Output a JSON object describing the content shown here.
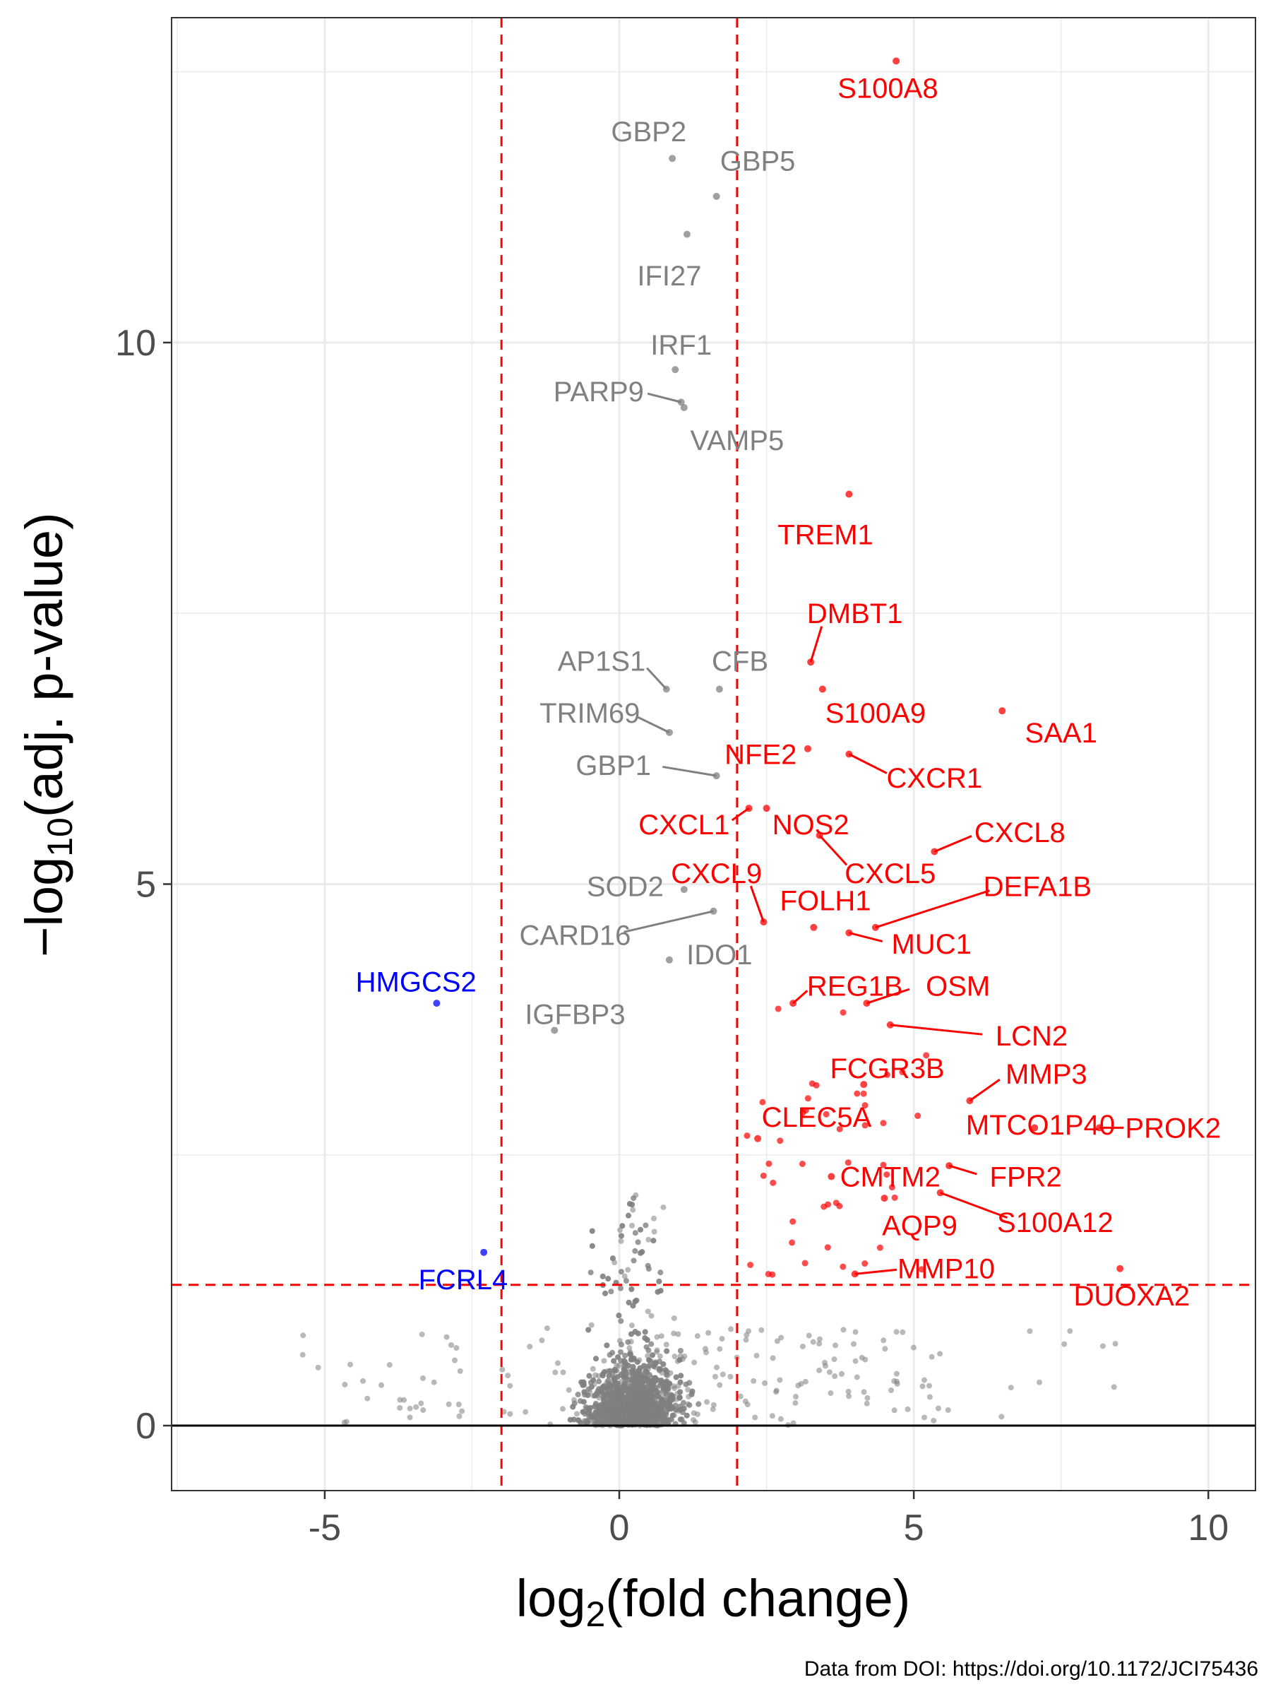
{
  "caption": "Data from DOI: https://doi.org/10.1172/JCI75436",
  "colors": {
    "up": "#ff0000",
    "down": "#0000ff",
    "ns": "#808080",
    "threshold": "#ff0000",
    "grid": "#ebebeb"
  },
  "chart_data": {
    "type": "scatter",
    "subtype": "volcano",
    "title": "",
    "xlabel": "log",
    "xlabel_sub": "2",
    "xlabel_rest": "(fold change)",
    "ylabel": "−log",
    "ylabel_sub": "10",
    "ylabel_rest": "(adj. p-value)",
    "xlim": [
      -7.6,
      10.8
    ],
    "ylim": [
      -0.6,
      13.0
    ],
    "xticks": [
      -5,
      0,
      5,
      10
    ],
    "xtick_labels": [
      "-5",
      "0",
      "5",
      "10"
    ],
    "yticks": [
      0,
      5,
      10
    ],
    "ytick_labels": [
      "0",
      "5",
      "10"
    ],
    "grid": true,
    "legend": "none",
    "thresholds": {
      "log2fc": [
        -2,
        2
      ],
      "neglog10p": 1.3
    },
    "labeled_points": [
      {
        "gene": "S100A8",
        "x": 4.7,
        "y": 12.6,
        "group": "up",
        "lx": 4.56,
        "ly": 12.35
      },
      {
        "gene": "GBP2",
        "x": 0.9,
        "y": 11.7,
        "group": "ns",
        "lx": 0.5,
        "ly": 11.95
      },
      {
        "gene": "GBP5",
        "x": 1.65,
        "y": 11.35,
        "group": "ns",
        "lx": 2.35,
        "ly": 11.68
      },
      {
        "gene": "IFI27",
        "x": 1.15,
        "y": 11.0,
        "group": "ns",
        "lx": 0.85,
        "ly": 10.62
      },
      {
        "gene": "IRF1",
        "x": 0.95,
        "y": 9.75,
        "group": "ns",
        "lx": 1.05,
        "ly": 9.98
      },
      {
        "gene": "PARP9",
        "x": 1.05,
        "y": 9.45,
        "group": "ns",
        "lx": -0.35,
        "ly": 9.55
      },
      {
        "gene": "VAMP5",
        "x": 1.1,
        "y": 9.4,
        "group": "ns",
        "lx": 2.0,
        "ly": 9.1
      },
      {
        "gene": "TREM1",
        "x": 3.9,
        "y": 8.6,
        "group": "up",
        "lx": 3.5,
        "ly": 8.23
      },
      {
        "gene": "DMBT1",
        "x": 3.25,
        "y": 7.05,
        "group": "up",
        "lx": 4.0,
        "ly": 7.5
      },
      {
        "gene": "AP1S1",
        "x": 0.8,
        "y": 6.8,
        "group": "ns",
        "lx": -0.3,
        "ly": 7.06
      },
      {
        "gene": "CFB",
        "x": 1.7,
        "y": 6.8,
        "group": "ns",
        "lx": 2.05,
        "ly": 7.06
      },
      {
        "gene": "S100A9",
        "x": 3.45,
        "y": 6.8,
        "group": "up",
        "lx": 4.35,
        "ly": 6.58
      },
      {
        "gene": "SAA1",
        "x": 6.5,
        "y": 6.6,
        "group": "up",
        "lx": 7.5,
        "ly": 6.4
      },
      {
        "gene": "TRIM69",
        "x": 0.85,
        "y": 6.4,
        "group": "ns",
        "lx": -0.5,
        "ly": 6.58
      },
      {
        "gene": "NFE2",
        "x": 3.2,
        "y": 6.25,
        "group": "up",
        "lx": 2.4,
        "ly": 6.2
      },
      {
        "gene": "CXCR1",
        "x": 3.9,
        "y": 6.2,
        "group": "up",
        "lx": 5.35,
        "ly": 5.98
      },
      {
        "gene": "GBP1",
        "x": 1.65,
        "y": 6.0,
        "group": "ns",
        "lx": -0.1,
        "ly": 6.1
      },
      {
        "gene": "CXCL1",
        "x": 2.2,
        "y": 5.7,
        "group": "up",
        "lx": 1.1,
        "ly": 5.55
      },
      {
        "gene": "NOS2",
        "x": 2.5,
        "y": 5.7,
        "group": "up",
        "lx": 3.25,
        "ly": 5.55
      },
      {
        "gene": "CXCL8",
        "x": 5.35,
        "y": 5.3,
        "group": "up",
        "lx": 6.8,
        "ly": 5.48
      },
      {
        "gene": "CXCL9",
        "x": 2.45,
        "y": 4.65,
        "group": "up",
        "lx": 1.65,
        "ly": 5.1
      },
      {
        "gene": "CXCL5",
        "x": 3.4,
        "y": 5.45,
        "group": "up",
        "lx": 4.6,
        "ly": 5.1
      },
      {
        "gene": "DEFA1B",
        "x": 4.35,
        "y": 4.6,
        "group": "up",
        "lx": 7.1,
        "ly": 4.98
      },
      {
        "gene": "FOLH1",
        "x": 3.3,
        "y": 4.6,
        "group": "up",
        "lx": 3.5,
        "ly": 4.85
      },
      {
        "gene": "SOD2",
        "x": 1.1,
        "y": 4.95,
        "group": "ns",
        "lx": 0.1,
        "ly": 4.98
      },
      {
        "gene": "MUC1",
        "x": 3.9,
        "y": 4.55,
        "group": "up",
        "lx": 5.3,
        "ly": 4.45
      },
      {
        "gene": "CARD16",
        "x": 1.6,
        "y": 4.75,
        "group": "ns",
        "lx": -0.75,
        "ly": 4.53
      },
      {
        "gene": "IDO1",
        "x": 0.85,
        "y": 4.3,
        "group": "ns",
        "lx": 1.7,
        "ly": 4.35
      },
      {
        "gene": "REG1B",
        "x": 2.95,
        "y": 3.9,
        "group": "up",
        "lx": 4.0,
        "ly": 4.06
      },
      {
        "gene": "OSM",
        "x": 4.2,
        "y": 3.9,
        "group": "up",
        "lx": 5.75,
        "ly": 4.06
      },
      {
        "gene": "IGFBP3",
        "x": -1.1,
        "y": 3.65,
        "group": "ns",
        "lx": -0.75,
        "ly": 3.8
      },
      {
        "gene": "HMGCS2",
        "x": -3.1,
        "y": 3.9,
        "group": "down",
        "lx": -3.45,
        "ly": 4.1
      },
      {
        "gene": "LCN2",
        "x": 4.6,
        "y": 3.7,
        "group": "up",
        "lx": 7.0,
        "ly": 3.6
      },
      {
        "gene": "FCGR3B",
        "x": 4.15,
        "y": 3.15,
        "group": "up",
        "lx": 4.55,
        "ly": 3.3
      },
      {
        "gene": "MMP3",
        "x": 5.95,
        "y": 3.0,
        "group": "up",
        "lx": 7.25,
        "ly": 3.25
      },
      {
        "gene": "CLEC5A",
        "x": 2.35,
        "y": 2.65,
        "group": "up",
        "lx": 3.35,
        "ly": 2.85
      },
      {
        "gene": "MTCO1P40",
        "x": 7.05,
        "y": 2.75,
        "group": "up",
        "lx": 7.15,
        "ly": 2.78
      },
      {
        "gene": "PROK2",
        "x": 8.15,
        "y": 2.75,
        "group": "up",
        "lx": 9.4,
        "ly": 2.75
      },
      {
        "gene": "CMTM2",
        "x": 3.6,
        "y": 2.3,
        "group": "up",
        "lx": 4.6,
        "ly": 2.3
      },
      {
        "gene": "FPR2",
        "x": 5.6,
        "y": 2.4,
        "group": "up",
        "lx": 6.9,
        "ly": 2.3
      },
      {
        "gene": "AQP9",
        "x": 4.5,
        "y": 2.1,
        "group": "up",
        "lx": 5.1,
        "ly": 1.85
      },
      {
        "gene": "S100A12",
        "x": 5.45,
        "y": 2.15,
        "group": "up",
        "lx": 7.4,
        "ly": 1.88
      },
      {
        "gene": "MMP10",
        "x": 4.0,
        "y": 1.4,
        "group": "up",
        "lx": 5.55,
        "ly": 1.45
      },
      {
        "gene": "DUOXA2",
        "x": 8.5,
        "y": 1.45,
        "group": "up",
        "lx": 8.7,
        "ly": 1.2
      },
      {
        "gene": "FCRL4",
        "x": -2.3,
        "y": 1.6,
        "group": "down",
        "lx": -2.65,
        "ly": 1.35
      }
    ]
  }
}
